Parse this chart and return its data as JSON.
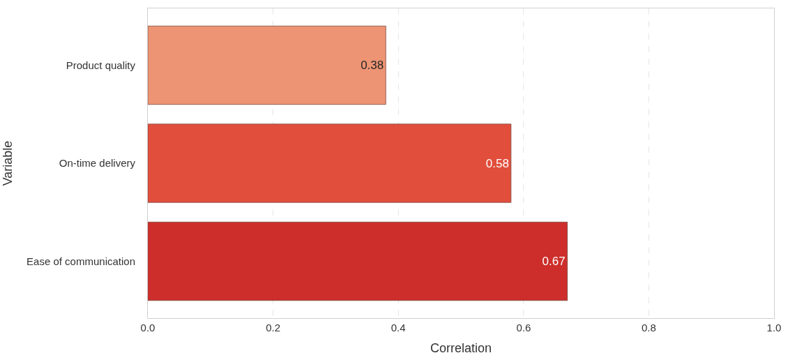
{
  "chart_data": {
    "type": "bar",
    "orientation": "horizontal",
    "xlabel": "Correlation",
    "ylabel": "Variable",
    "categories": [
      "Product quality",
      "On-time delivery",
      "Ease of communication"
    ],
    "values": [
      0.38,
      0.58,
      0.67
    ],
    "colors": [
      "#ed9474",
      "#e24e3c",
      "#cd2e2b"
    ],
    "xlim": [
      0.0,
      1.0
    ],
    "xticks": [
      {
        "value": 0,
        "label": "0.0"
      },
      {
        "value": 0.2,
        "label": "0.2"
      },
      {
        "value": 0.4,
        "label": "0.4"
      },
      {
        "value": 0.6,
        "label": "0.6"
      },
      {
        "value": 0.8,
        "label": "0.8"
      },
      {
        "value": 1,
        "label": "1.0"
      }
    ],
    "grid": "x",
    "data_labels": true
  }
}
